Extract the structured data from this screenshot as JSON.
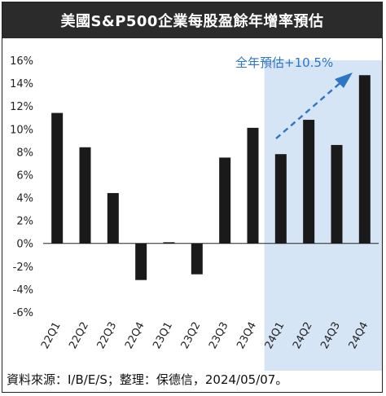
{
  "title": "美國S&P500企業每股盈餘年增率預估",
  "source": "資料來源：I/B/E/S；整理：保德信，2024/05/07。",
  "colors": {
    "bar": "#1a1a1a",
    "forecast_band": "#d6e5f5",
    "annotation": "#2e75c3",
    "title_bg": "#2b2b2b"
  },
  "chart_data": {
    "type": "bar",
    "title": "美國S&P500企業每股盈餘年增率預估",
    "categories": [
      "22Q1",
      "22Q2",
      "22Q3",
      "22Q4",
      "23Q1",
      "23Q2",
      "23Q3",
      "23Q4",
      "24Q1",
      "24Q2",
      "24Q3",
      "24Q4"
    ],
    "values": [
      11.4,
      8.4,
      4.4,
      -3.2,
      0.1,
      -2.7,
      7.5,
      10.1,
      7.8,
      10.8,
      8.6,
      14.7
    ],
    "ylim": [
      -6,
      16
    ],
    "yticks": [
      "-6%",
      "-4%",
      "-2%",
      "0%",
      "2%",
      "4%",
      "6%",
      "8%",
      "10%",
      "12%",
      "14%",
      "16%"
    ],
    "ytick_values": [
      -6,
      -4,
      -2,
      0,
      2,
      4,
      6,
      8,
      10,
      12,
      14,
      16
    ],
    "forecast_start_category": "24Q1",
    "annotation": "全年預估+10.5%",
    "grid": false
  }
}
